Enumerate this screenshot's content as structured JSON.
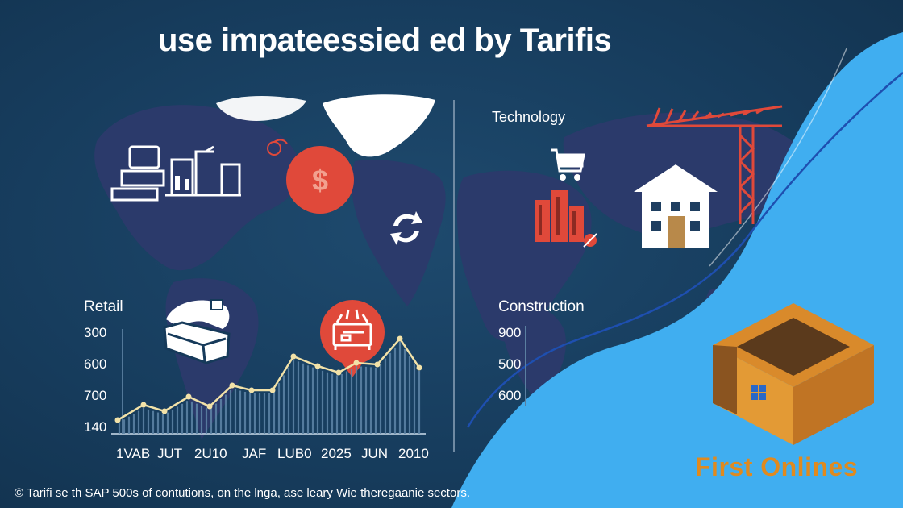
{
  "title": "use impateessied ed by Tarifis",
  "sections": {
    "technology": "Technology",
    "retail": "Retail",
    "construction": "Construction"
  },
  "retail_chart": {
    "y_tick_labels": [
      "300",
      "600",
      "700",
      "140"
    ],
    "x_tick_labels": [
      "1VAB",
      "JUT",
      "2U10",
      "JAF",
      "LUB0",
      "2025",
      "JUN",
      "2010"
    ]
  },
  "construction_chart": {
    "y_tick_labels": [
      "900",
      "500",
      "600"
    ]
  },
  "caption": "© Tarifi se th SAP 500s of contutions, on the lnga, ase leary Wie theregaanie sectors.",
  "brand": {
    "name": "First Onlines",
    "color": "#e08a1e"
  },
  "colors": {
    "background": "#163a5a",
    "map": "#2b3a6b",
    "accent_red": "#e0493a",
    "sky_blue": "#40aef0",
    "logo_orange": "#d98a2b"
  },
  "icons": [
    "trucks-icon",
    "dollar-icon",
    "recycle-icon",
    "cart-icon",
    "buildings-icon",
    "house-icon",
    "crane-icon",
    "globe-container-icon",
    "machinery-icon",
    "box-logo-icon"
  ]
}
